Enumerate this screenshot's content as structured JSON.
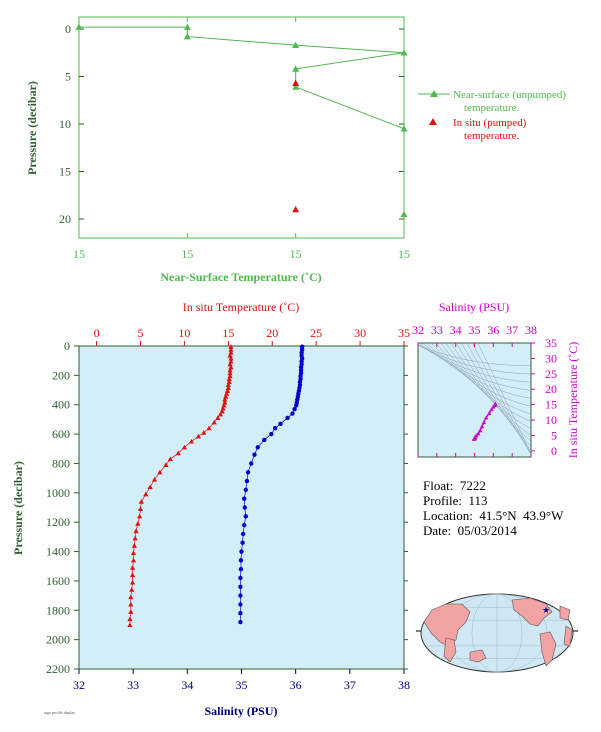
{
  "colors": {
    "green": "#4fb84f",
    "axis_green": "#2f5f2f",
    "red": "#e01010",
    "blue": "#0000cc",
    "navy": "#000080",
    "magenta": "#cc00cc",
    "panel_bg": "#d4eef8",
    "land": "#f2a3a3",
    "ocean": "#cfe8f3"
  },
  "info": {
    "float": "Float:  7222",
    "profile": "Profile:  113",
    "location": "Location:  41.5°N  43.9°W",
    "date": "Date:  05/03/2014"
  },
  "footer_tag": "argo profile display",
  "chart_data": [
    {
      "type": "line",
      "xlabel": "Near-Surface Temperature (˚C)",
      "ylabel": "Pressure (decibar)",
      "x_tick_labels": [
        "15",
        "15",
        "15",
        "15"
      ],
      "y_ticks": [
        0,
        5,
        10,
        15,
        20
      ],
      "ylim": [
        0,
        22
      ],
      "xlim_ticks_index": [
        0,
        3
      ],
      "y_inverted": true,
      "legend_placement": "right",
      "series": [
        {
          "name": "Near-surface (unpumped) temperature.",
          "marker": "triangle",
          "color": "#4fb84f",
          "points": [
            [
              0,
              -0.2
            ],
            [
              1,
              -0.2
            ],
            [
              1,
              0.8
            ],
            [
              2,
              1.7
            ],
            [
              3,
              2.5
            ],
            [
              2,
              4.2
            ],
            [
              2,
              6.1
            ],
            [
              3,
              10.5
            ],
            [
              3,
              19.5
            ]
          ]
        },
        {
          "name": "In situ (pumped) temperature.",
          "marker": "triangle",
          "color": "#e01010",
          "points": [
            [
              2,
              5.7
            ],
            [
              2,
              19.0
            ]
          ]
        }
      ]
    },
    {
      "type": "scatter",
      "ylabel": "Pressure (decibar)",
      "xlabel_top": "In situ Temperature (˚C)",
      "xlabel_bottom": "Salinity (PSU)",
      "temp_ticks": [
        0,
        5,
        10,
        15,
        20,
        25,
        30,
        35
      ],
      "salinity_ticks": [
        32,
        33,
        34,
        35,
        36,
        37,
        38
      ],
      "pressure_ticks": [
        0,
        200,
        400,
        600,
        800,
        1000,
        1200,
        1400,
        1600,
        1800,
        2000,
        2200
      ],
      "temp_lim": [
        -2,
        35
      ],
      "salinity_lim": [
        32,
        38
      ],
      "pressure_lim": [
        0,
        2200
      ],
      "series": [
        {
          "name": "In situ Temperature",
          "color": "#e01010",
          "points": [
            [
              15.3,
              5
            ],
            [
              15.3,
              25
            ],
            [
              15.3,
              45
            ],
            [
              15.2,
              65
            ],
            [
              15.3,
              85
            ],
            [
              15.3,
              105
            ],
            [
              15.2,
              125
            ],
            [
              15.3,
              145
            ],
            [
              15.2,
              165
            ],
            [
              15.2,
              185
            ],
            [
              15.2,
              205
            ],
            [
              15.1,
              225
            ],
            [
              15.1,
              245
            ],
            [
              15.0,
              265
            ],
            [
              15.0,
              285
            ],
            [
              14.9,
              305
            ],
            [
              14.8,
              325
            ],
            [
              14.7,
              345
            ],
            [
              14.6,
              365
            ],
            [
              14.6,
              385
            ],
            [
              14.5,
              405
            ],
            [
              14.4,
              425
            ],
            [
              14.3,
              445
            ],
            [
              14.1,
              465
            ],
            [
              13.8,
              490
            ],
            [
              13.4,
              520
            ],
            [
              12.8,
              560
            ],
            [
              12.2,
              590
            ],
            [
              11.6,
              615
            ],
            [
              10.8,
              650
            ],
            [
              10.0,
              690
            ],
            [
              9.3,
              730
            ],
            [
              8.4,
              770
            ],
            [
              7.9,
              810
            ],
            [
              7.2,
              860
            ],
            [
              6.6,
              910
            ],
            [
              6.1,
              960
            ],
            [
              5.6,
              1010
            ],
            [
              5.1,
              1060
            ],
            [
              5.0,
              1110
            ],
            [
              4.9,
              1160
            ],
            [
              4.7,
              1210
            ],
            [
              4.5,
              1260
            ],
            [
              4.4,
              1310
            ],
            [
              4.3,
              1360
            ],
            [
              4.2,
              1410
            ],
            [
              4.2,
              1460
            ],
            [
              4.1,
              1510
            ],
            [
              4.1,
              1560
            ],
            [
              4.1,
              1610
            ],
            [
              4.0,
              1660
            ],
            [
              3.9,
              1710
            ],
            [
              3.9,
              1760
            ],
            [
              3.9,
              1810
            ],
            [
              3.8,
              1860
            ],
            [
              3.8,
              1900
            ]
          ]
        },
        {
          "name": "Salinity",
          "color": "#0000cc",
          "points": [
            [
              36.12,
              5
            ],
            [
              36.12,
              25
            ],
            [
              36.11,
              45
            ],
            [
              36.11,
              65
            ],
            [
              36.12,
              85
            ],
            [
              36.11,
              105
            ],
            [
              36.11,
              125
            ],
            [
              36.1,
              145
            ],
            [
              36.1,
              165
            ],
            [
              36.1,
              185
            ],
            [
              36.09,
              205
            ],
            [
              36.09,
              225
            ],
            [
              36.08,
              245
            ],
            [
              36.08,
              265
            ],
            [
              36.07,
              285
            ],
            [
              36.06,
              305
            ],
            [
              36.05,
              325
            ],
            [
              36.04,
              345
            ],
            [
              36.03,
              365
            ],
            [
              36.02,
              385
            ],
            [
              36.01,
              405
            ],
            [
              35.98,
              430
            ],
            [
              35.94,
              460
            ],
            [
              35.85,
              490
            ],
            [
              35.72,
              530
            ],
            [
              35.62,
              560
            ],
            [
              35.55,
              600
            ],
            [
              35.42,
              640
            ],
            [
              35.3,
              690
            ],
            [
              35.24,
              740
            ],
            [
              35.18,
              800
            ],
            [
              35.12,
              860
            ],
            [
              35.1,
              920
            ],
            [
              35.08,
              980
            ],
            [
              35.05,
              1040
            ],
            [
              35.06,
              1100
            ],
            [
              35.08,
              1160
            ],
            [
              35.05,
              1220
            ],
            [
              35.03,
              1280
            ],
            [
              35.02,
              1340
            ],
            [
              35.0,
              1400
            ],
            [
              34.99,
              1460
            ],
            [
              34.99,
              1520
            ],
            [
              34.98,
              1580
            ],
            [
              34.98,
              1640
            ],
            [
              34.98,
              1700
            ],
            [
              34.98,
              1760
            ],
            [
              34.98,
              1820
            ],
            [
              34.98,
              1880
            ]
          ]
        }
      ]
    },
    {
      "type": "scatter",
      "title": "Salinity (PSU)",
      "ylabel": "In situ Temperature (˚C)",
      "salinity_ticks": [
        32,
        33,
        34,
        35,
        36,
        37,
        38
      ],
      "temp_ticks": [
        0,
        5,
        10,
        15,
        20,
        25,
        30,
        35
      ],
      "xlim": [
        32,
        38
      ],
      "ylim": [
        -2,
        35
      ],
      "series": [
        {
          "name": "T-S",
          "color": "#cc00cc",
          "points": [
            [
              36.11,
              15.3
            ],
            [
              36.08,
              14.8
            ],
            [
              36.0,
              14.3
            ],
            [
              35.9,
              13.4
            ],
            [
              35.78,
              12.2
            ],
            [
              35.62,
              10.8
            ],
            [
              35.5,
              9.3
            ],
            [
              35.4,
              7.9
            ],
            [
              35.3,
              6.6
            ],
            [
              35.2,
              5.6
            ],
            [
              35.1,
              5.0
            ],
            [
              35.05,
              4.5
            ],
            [
              35.02,
              4.3
            ],
            [
              35.0,
              4.1
            ],
            [
              34.99,
              4.0
            ],
            [
              34.98,
              3.9
            ],
            [
              34.98,
              3.8
            ]
          ]
        }
      ]
    }
  ],
  "map": {
    "marker_lat": 41.5,
    "marker_lon": -43.9
  }
}
